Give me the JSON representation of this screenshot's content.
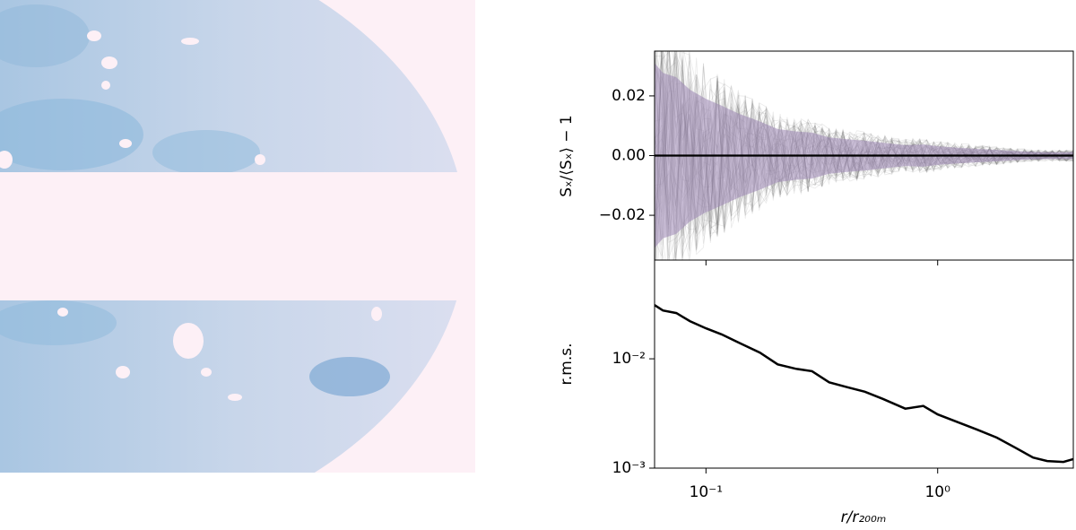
{
  "chart_data": [
    {
      "type": "band",
      "ylabel": "Sₓ/⟨Sₓ⟩ − 1",
      "xscale": "log",
      "xlim": [
        0.06,
        3.85
      ],
      "ylim": [
        -0.035,
        0.035
      ],
      "yticks": [
        {
          "value": -0.02,
          "label": "−0.02"
        },
        {
          "value": 0,
          "label": "0.00"
        },
        0.02
      ],
      "band_color": "#9d86b4",
      "line_color": "#000000",
      "line_value": 0
    },
    {
      "type": "line",
      "ylabel": "r.m.s.",
      "xlabel": "r/r₂₀₀ₘ",
      "xscale": "log",
      "yscale": "log",
      "x": [
        0.06,
        0.0652,
        0.0745,
        0.0852,
        0.1,
        0.117,
        0.138,
        0.171,
        0.204,
        0.244,
        0.287,
        0.34,
        0.406,
        0.485,
        0.58,
        0.725,
        0.867,
        1.0,
        1.24,
        1.48,
        1.8,
        2.15,
        2.58,
        2.97,
        3.49,
        3.85
      ],
      "values": [
        0.031,
        0.0277,
        0.0262,
        0.0221,
        0.019,
        0.0167,
        0.0141,
        0.0114,
        0.0089,
        0.0081,
        0.0077,
        0.0061,
        0.0055,
        0.005,
        0.0043,
        0.0035,
        0.0037,
        0.0031,
        0.0026,
        0.00225,
        0.0019,
        0.00155,
        0.00125,
        0.00116,
        0.00114,
        0.00121
      ],
      "xlim": [
        0.06,
        3.85
      ],
      "xticks": [
        {
          "value": 0.1,
          "label": "10⁻¹"
        },
        {
          "value": 1,
          "label": "10⁰"
        }
      ],
      "ylim": [
        0.001,
        0.08
      ],
      "yticks": [
        {
          "value": 0.001,
          "label": "10⁻³"
        },
        {
          "value": 0.01,
          "label": "10⁻²"
        }
      ],
      "color": "#000000"
    }
  ]
}
